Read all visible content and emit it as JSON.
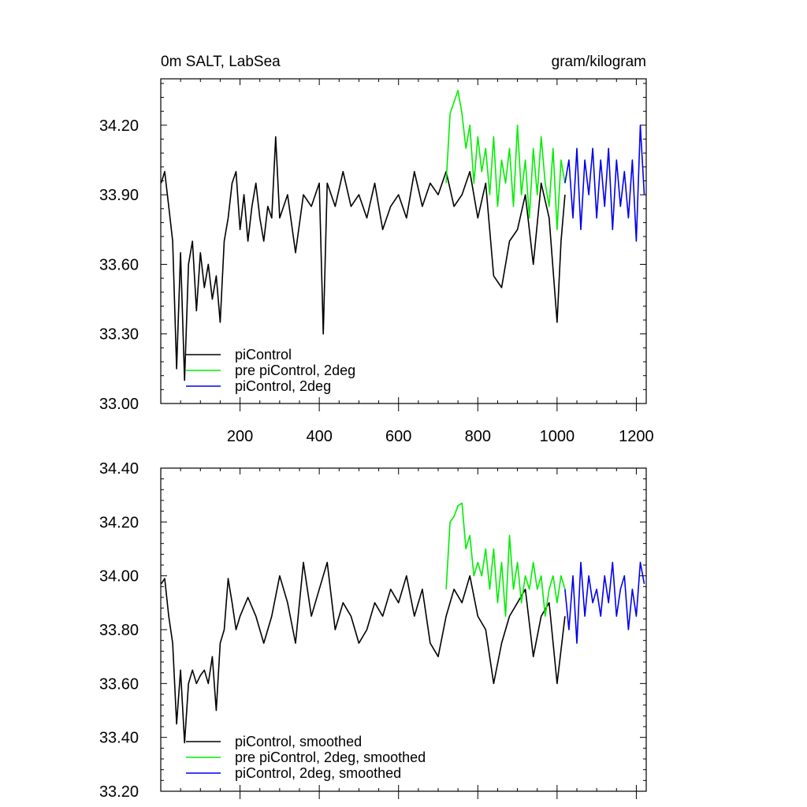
{
  "chart_data": [
    {
      "type": "line",
      "title": "0m SALT, LabSea",
      "units": "gram/kilogram",
      "xlim": [
        0,
        1225
      ],
      "ylim": [
        33.0,
        34.4
      ],
      "xticks": [
        200,
        400,
        600,
        800,
        1000,
        1200
      ],
      "xtick_labels": [
        "200",
        "400",
        "600",
        "800",
        "1000",
        "1200"
      ],
      "yticks": [
        33.0,
        33.3,
        33.6,
        33.9,
        34.2
      ],
      "ytick_labels": [
        "33.00",
        "33.30",
        "33.60",
        "33.90",
        "34.20"
      ],
      "legend": [
        "piControl",
        "pre piControl, 2deg",
        "piControl, 2deg"
      ],
      "series": [
        {
          "name": "piControl",
          "color": "#000000",
          "x": [
            1,
            10,
            20,
            30,
            40,
            50,
            60,
            70,
            80,
            90,
            100,
            110,
            120,
            130,
            140,
            150,
            160,
            170,
            180,
            190,
            200,
            210,
            220,
            230,
            240,
            250,
            260,
            270,
            280,
            290,
            300,
            320,
            340,
            360,
            380,
            400,
            410,
            420,
            440,
            460,
            480,
            500,
            520,
            540,
            560,
            580,
            600,
            620,
            640,
            660,
            680,
            700,
            720,
            740,
            760,
            780,
            800,
            820,
            840,
            860,
            880,
            900,
            920,
            940,
            960,
            980,
            1000,
            1010,
            1020
          ],
          "values": [
            33.95,
            34.0,
            33.85,
            33.7,
            33.15,
            33.65,
            33.1,
            33.6,
            33.7,
            33.4,
            33.65,
            33.5,
            33.6,
            33.45,
            33.55,
            33.35,
            33.7,
            33.8,
            33.95,
            34.0,
            33.75,
            33.9,
            33.7,
            33.85,
            33.95,
            33.8,
            33.7,
            33.85,
            33.8,
            34.15,
            33.8,
            33.9,
            33.65,
            33.9,
            33.85,
            33.95,
            33.3,
            33.95,
            33.85,
            34.0,
            33.85,
            33.9,
            33.8,
            33.95,
            33.75,
            33.85,
            33.9,
            33.8,
            34.0,
            33.85,
            33.95,
            33.9,
            34.0,
            33.85,
            33.9,
            34.0,
            33.8,
            33.95,
            33.55,
            33.5,
            33.7,
            33.75,
            33.9,
            33.6,
            33.95,
            33.8,
            33.35,
            33.7,
            33.9
          ]
        },
        {
          "name": "pre piControl, 2deg",
          "color": "#00ee00",
          "x": [
            720,
            730,
            740,
            750,
            760,
            770,
            780,
            790,
            800,
            810,
            820,
            830,
            840,
            850,
            860,
            870,
            880,
            890,
            900,
            910,
            920,
            930,
            940,
            950,
            960,
            970,
            980,
            990,
            1000,
            1010,
            1020
          ],
          "values": [
            33.95,
            34.25,
            34.3,
            34.35,
            34.25,
            34.1,
            34.2,
            33.95,
            34.15,
            34.0,
            34.1,
            33.9,
            34.15,
            33.85,
            34.05,
            33.95,
            34.1,
            33.85,
            34.2,
            33.9,
            34.05,
            33.8,
            34.1,
            33.9,
            34.15,
            33.95,
            33.85,
            34.1,
            33.75,
            34.05,
            33.95
          ]
        },
        {
          "name": "piControl, 2deg",
          "color": "#0000ee",
          "x": [
            1020,
            1030,
            1040,
            1050,
            1060,
            1070,
            1080,
            1090,
            1100,
            1110,
            1120,
            1130,
            1140,
            1150,
            1160,
            1170,
            1180,
            1190,
            1200,
            1210,
            1220
          ],
          "values": [
            33.95,
            34.05,
            33.8,
            34.1,
            33.75,
            34.05,
            33.9,
            34.1,
            33.8,
            34.05,
            33.85,
            34.1,
            33.75,
            34.05,
            33.85,
            34.0,
            33.8,
            34.05,
            33.7,
            34.2,
            33.9
          ]
        }
      ]
    },
    {
      "type": "line",
      "title": "",
      "units": "",
      "xlim": [
        0,
        1225
      ],
      "ylim": [
        33.2,
        34.4
      ],
      "xticks": [
        200,
        400,
        600,
        800,
        1000,
        1200
      ],
      "xtick_labels": [
        "",
        "",
        "",
        "",
        "",
        ""
      ],
      "yticks": [
        33.2,
        33.4,
        33.6,
        33.8,
        34.0,
        34.2,
        34.4
      ],
      "ytick_labels": [
        "33.20",
        "33.40",
        "33.60",
        "33.80",
        "34.00",
        "34.20",
        "34.40"
      ],
      "legend": [
        "piControl, smoothed",
        "pre piControl, 2deg, smoothed",
        "piControl, 2deg, smoothed"
      ],
      "series": [
        {
          "name": "piControl, smoothed",
          "color": "#000000",
          "x": [
            1,
            10,
            20,
            30,
            40,
            50,
            60,
            70,
            80,
            90,
            100,
            110,
            120,
            130,
            140,
            150,
            160,
            170,
            180,
            190,
            200,
            220,
            240,
            260,
            280,
            300,
            320,
            340,
            360,
            380,
            400,
            420,
            440,
            460,
            480,
            500,
            520,
            540,
            560,
            580,
            600,
            620,
            640,
            660,
            680,
            700,
            720,
            740,
            760,
            780,
            800,
            820,
            840,
            860,
            880,
            900,
            920,
            940,
            960,
            980,
            1000,
            1020
          ],
          "values": [
            33.97,
            33.99,
            33.85,
            33.75,
            33.45,
            33.65,
            33.38,
            33.6,
            33.65,
            33.6,
            33.63,
            33.65,
            33.6,
            33.7,
            33.5,
            33.75,
            33.8,
            33.99,
            33.9,
            33.8,
            33.85,
            33.92,
            33.85,
            33.75,
            33.85,
            34.0,
            33.9,
            33.75,
            34.05,
            33.85,
            33.95,
            34.05,
            33.8,
            33.9,
            33.85,
            33.75,
            33.8,
            33.9,
            33.85,
            33.95,
            33.9,
            34.0,
            33.85,
            33.95,
            33.75,
            33.7,
            33.85,
            33.95,
            33.9,
            34.0,
            33.85,
            33.8,
            33.6,
            33.75,
            33.85,
            33.9,
            33.95,
            33.7,
            33.85,
            33.9,
            33.6,
            33.85
          ]
        },
        {
          "name": "pre piControl, 2deg, smoothed",
          "color": "#00ee00",
          "x": [
            720,
            730,
            740,
            750,
            760,
            770,
            780,
            790,
            800,
            810,
            820,
            830,
            840,
            850,
            860,
            870,
            880,
            890,
            900,
            910,
            920,
            930,
            940,
            950,
            960,
            970,
            980,
            990,
            1000,
            1010,
            1020
          ],
          "values": [
            33.95,
            34.2,
            34.22,
            34.26,
            34.27,
            34.1,
            34.15,
            34.0,
            34.05,
            34.0,
            34.1,
            33.95,
            34.1,
            33.9,
            34.05,
            33.85,
            34.15,
            33.95,
            34.05,
            33.9,
            34.0,
            33.95,
            34.05,
            33.95,
            34.0,
            33.85,
            33.95,
            34.0,
            33.9,
            34.0,
            33.95
          ]
        },
        {
          "name": "piControl, 2deg, smoothed",
          "color": "#0000ee",
          "x": [
            1020,
            1030,
            1040,
            1050,
            1060,
            1070,
            1080,
            1090,
            1100,
            1110,
            1120,
            1130,
            1140,
            1150,
            1160,
            1170,
            1180,
            1190,
            1200,
            1210,
            1220
          ],
          "values": [
            33.95,
            33.8,
            34.0,
            33.75,
            34.05,
            33.85,
            34.0,
            33.9,
            33.95,
            33.85,
            34.0,
            33.9,
            34.05,
            33.85,
            33.95,
            34.0,
            33.8,
            33.95,
            33.85,
            34.05,
            33.97
          ]
        }
      ]
    }
  ]
}
